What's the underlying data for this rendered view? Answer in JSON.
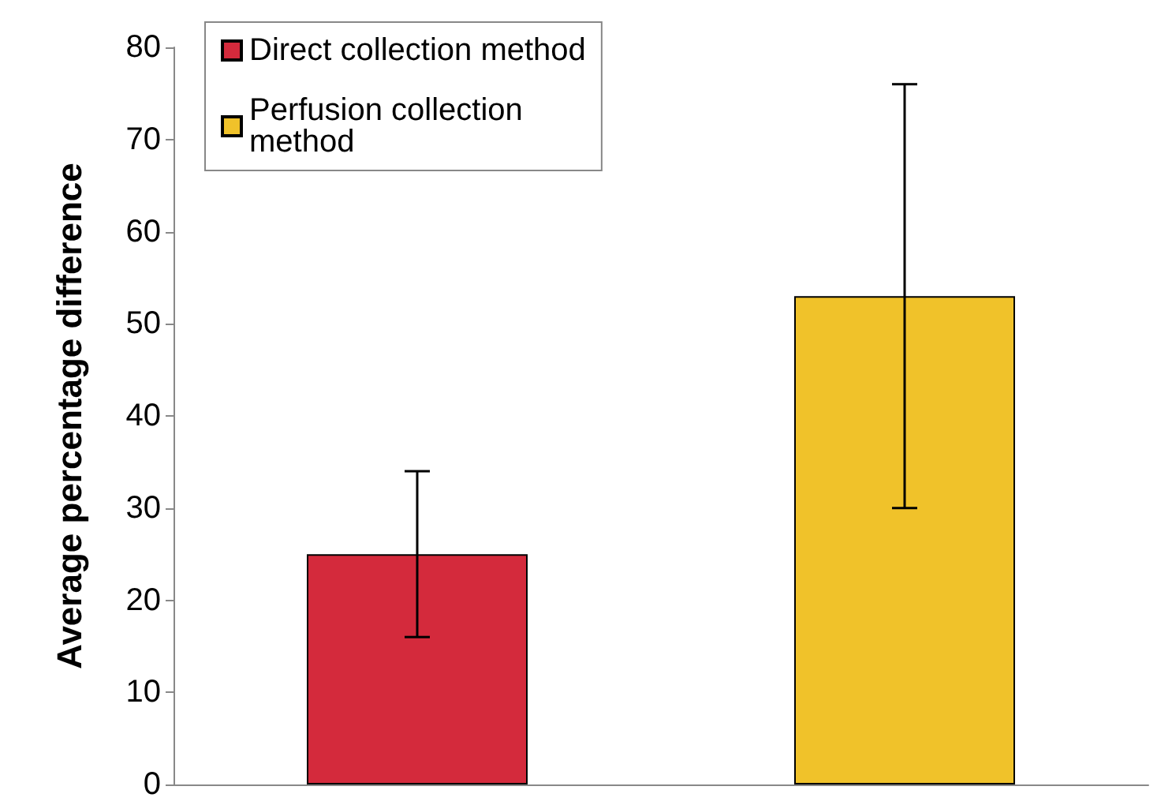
{
  "chart_data": {
    "type": "bar",
    "ylabel": "Average percentage difference",
    "categories": [
      null,
      null
    ],
    "series": [
      {
        "name": "Direct collection method",
        "color": "#d42a3c",
        "values": [
          25,
          null
        ],
        "errors": [
          9,
          null
        ]
      },
      {
        "name": "Perfusion collection method",
        "color": "#f0c22a",
        "values": [
          null,
          53
        ],
        "errors": [
          null,
          23
        ]
      }
    ],
    "ylim": [
      0,
      80
    ],
    "yticks": [
      0,
      10,
      20,
      30,
      40,
      50,
      60,
      70,
      80
    ],
    "grid": false,
    "legend": "top left"
  }
}
